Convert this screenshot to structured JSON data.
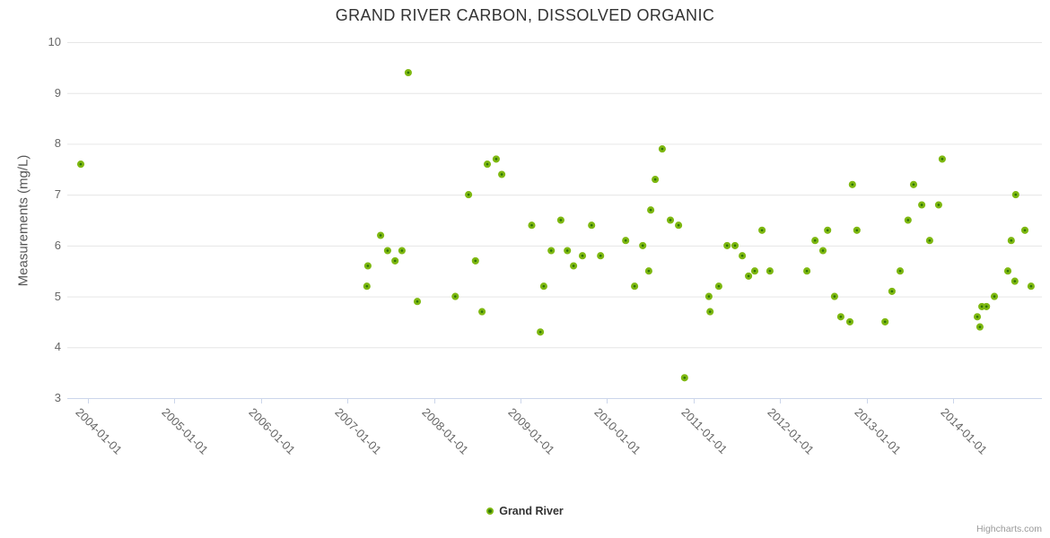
{
  "title": "GRAND RIVER CARBON, DISSOLVED ORGANIC",
  "credits": "Highcharts.com",
  "legend": {
    "series_label": "Grand River"
  },
  "colors": {
    "point_fill": "#2e7407",
    "point_ring": "#7eb811",
    "grid": "#e6e6e6",
    "axis_line": "#ccd6eb",
    "title": "#333333",
    "labels": "#666666",
    "credits": "#999999"
  },
  "chart_data": {
    "type": "scatter",
    "title": "GRAND RIVER CARBON, DISSOLVED ORGANIC",
    "xlabel": "",
    "ylabel": "Measurements (mg/L)",
    "ylim": [
      3,
      10
    ],
    "y_ticks": [
      3,
      4,
      5,
      6,
      7,
      8,
      9,
      10
    ],
    "x_ticks": [
      "2004-01-01",
      "2005-01-01",
      "2006-01-01",
      "2007-01-01",
      "2008-01-01",
      "2009-01-01",
      "2010-01-01",
      "2011-01-01",
      "2012-01-01",
      "2013-01-01",
      "2014-01-01"
    ],
    "grid": true,
    "legend_position": "bottom-center",
    "series": [
      {
        "name": "Grand River",
        "points": [
          [
            "2003-12-01",
            7.6
          ],
          [
            "2007-03-22",
            5.2
          ],
          [
            "2007-03-26",
            5.6
          ],
          [
            "2007-05-19",
            6.2
          ],
          [
            "2007-06-18",
            5.9
          ],
          [
            "2007-07-19",
            5.7
          ],
          [
            "2007-08-18",
            5.9
          ],
          [
            "2007-09-14",
            9.4
          ],
          [
            "2007-10-22",
            4.9
          ],
          [
            "2008-03-30",
            5.0
          ],
          [
            "2008-05-25",
            7.0
          ],
          [
            "2008-06-24",
            5.7
          ],
          [
            "2008-07-21",
            4.7
          ],
          [
            "2008-08-13",
            7.6
          ],
          [
            "2008-09-20",
            7.7
          ],
          [
            "2008-10-13",
            7.4
          ],
          [
            "2009-02-18",
            6.4
          ],
          [
            "2009-03-24",
            4.3
          ],
          [
            "2009-04-08",
            5.2
          ],
          [
            "2009-05-09",
            5.9
          ],
          [
            "2009-06-19",
            6.5
          ],
          [
            "2009-07-16",
            5.9
          ],
          [
            "2009-08-12",
            5.6
          ],
          [
            "2009-09-19",
            5.8
          ],
          [
            "2009-10-27",
            6.4
          ],
          [
            "2009-12-04",
            5.8
          ],
          [
            "2010-03-19",
            6.1
          ],
          [
            "2010-04-26",
            5.2
          ],
          [
            "2010-05-30",
            6.0
          ],
          [
            "2010-06-25",
            5.5
          ],
          [
            "2010-07-03",
            6.7
          ],
          [
            "2010-07-22",
            7.3
          ],
          [
            "2010-08-21",
            7.9
          ],
          [
            "2010-09-25",
            6.5
          ],
          [
            "2010-10-29",
            6.4
          ],
          [
            "2010-11-24",
            3.4
          ],
          [
            "2011-03-05",
            5.0
          ],
          [
            "2011-03-10",
            4.7
          ],
          [
            "2011-04-16",
            5.2
          ],
          [
            "2011-05-21",
            6.0
          ],
          [
            "2011-06-24",
            6.0
          ],
          [
            "2011-07-24",
            5.8
          ],
          [
            "2011-08-20",
            5.4
          ],
          [
            "2011-09-16",
            5.5
          ],
          [
            "2011-10-16",
            6.3
          ],
          [
            "2011-11-19",
            5.5
          ],
          [
            "2012-04-23",
            5.5
          ],
          [
            "2012-05-27",
            6.1
          ],
          [
            "2012-06-30",
            5.9
          ],
          [
            "2012-07-19",
            6.3
          ],
          [
            "2012-08-18",
            5.0
          ],
          [
            "2012-09-14",
            4.6
          ],
          [
            "2012-10-22",
            4.5
          ],
          [
            "2012-11-02",
            7.2
          ],
          [
            "2012-11-21",
            6.3
          ],
          [
            "2013-03-18",
            4.5
          ],
          [
            "2013-04-17",
            5.1
          ],
          [
            "2013-05-21",
            5.5
          ],
          [
            "2013-06-24",
            6.5
          ],
          [
            "2013-07-17",
            7.2
          ],
          [
            "2013-08-21",
            6.8
          ],
          [
            "2013-09-24",
            6.1
          ],
          [
            "2013-11-01",
            6.8
          ],
          [
            "2013-11-16",
            7.7
          ],
          [
            "2014-04-12",
            4.6
          ],
          [
            "2014-04-23",
            4.4
          ],
          [
            "2014-05-01",
            4.8
          ],
          [
            "2014-05-20",
            4.8
          ],
          [
            "2014-06-23",
            5.0
          ],
          [
            "2014-08-19",
            5.5
          ],
          [
            "2014-09-03",
            6.1
          ],
          [
            "2014-09-18",
            5.3
          ],
          [
            "2014-09-22",
            7.0
          ],
          [
            "2014-10-30",
            6.3
          ],
          [
            "2014-11-26",
            5.2
          ]
        ]
      }
    ]
  }
}
